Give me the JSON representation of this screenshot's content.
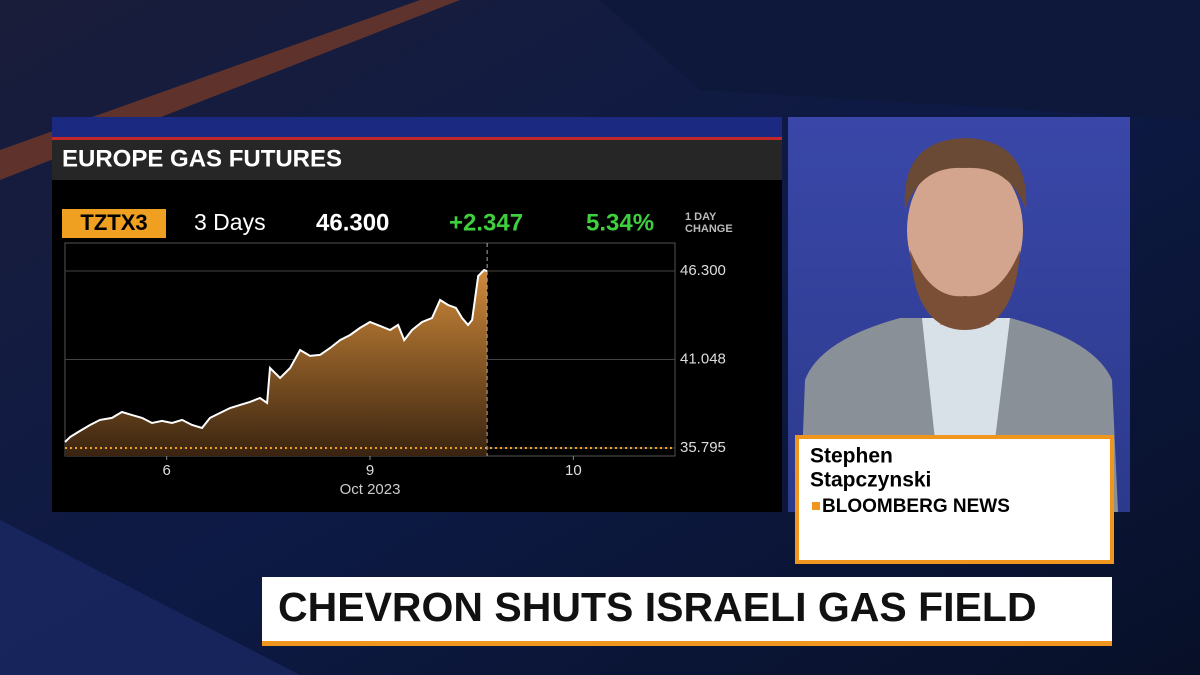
{
  "chart_data": {
    "type": "area",
    "title": "EUROPE GAS FUTURES",
    "ticker": "TZTX3",
    "period": "3 Days",
    "last": "46.300",
    "change": "+2.347",
    "change_pct": "5.34%",
    "change_caption": [
      "1 DAY",
      "CHANGE"
    ],
    "x_label": "Oct 2023",
    "color": "#c77a2c",
    "line_color": "#ffffff",
    "x": [
      0,
      0.025,
      0.064,
      0.123,
      0.172,
      0.231,
      0.28,
      0.33,
      0.379,
      0.428,
      0.477,
      0.526,
      0.576,
      0.625,
      0.674,
      0.713,
      0.762,
      0.812,
      0.861,
      0.91,
      0.959,
      0.994,
      1.008,
      1.058,
      1.107,
      1.156,
      1.205,
      1.254,
      1.304,
      1.353,
      1.402,
      1.451,
      1.5,
      1.549,
      1.599,
      1.638,
      1.668,
      1.707,
      1.756,
      1.805,
      1.845,
      1.884,
      1.923,
      1.953,
      1.982,
      2.002,
      2.032,
      2.061,
      2.076
    ],
    "values": [
      36.15,
      36.45,
      36.74,
      37.16,
      37.46,
      37.58,
      37.93,
      37.75,
      37.58,
      37.28,
      37.4,
      37.28,
      37.46,
      37.16,
      36.98,
      37.58,
      37.87,
      38.17,
      38.35,
      38.53,
      38.76,
      38.47,
      40.54,
      39.95,
      40.54,
      41.61,
      41.26,
      41.32,
      41.73,
      42.2,
      42.5,
      42.92,
      43.27,
      43.04,
      42.8,
      43.1,
      42.2,
      42.8,
      43.27,
      43.51,
      44.58,
      44.28,
      44.1,
      43.51,
      43.1,
      43.39,
      46.0,
      46.36,
      46.3
    ],
    "xlim": [
      0,
      3
    ],
    "xticks": [
      {
        "value": 0.5,
        "label": "6"
      },
      {
        "value": 1.5,
        "label": "9"
      },
      {
        "value": 2.5,
        "label": "10"
      }
    ],
    "ylim": [
      35.32,
      47.96
    ],
    "yticks": [
      {
        "value": 35.795,
        "label": "35.795"
      },
      {
        "value": 41.048,
        "label": "41.048"
      },
      {
        "value": 46.3,
        "label": "46.300"
      }
    ],
    "grid": true
  },
  "guest": {
    "name": [
      "Stephen",
      "Stapczynski"
    ],
    "affiliation": "BLOOMBERG NEWS"
  },
  "headline": "CHEVRON SHUTS ISRAELI GAS FIELD"
}
